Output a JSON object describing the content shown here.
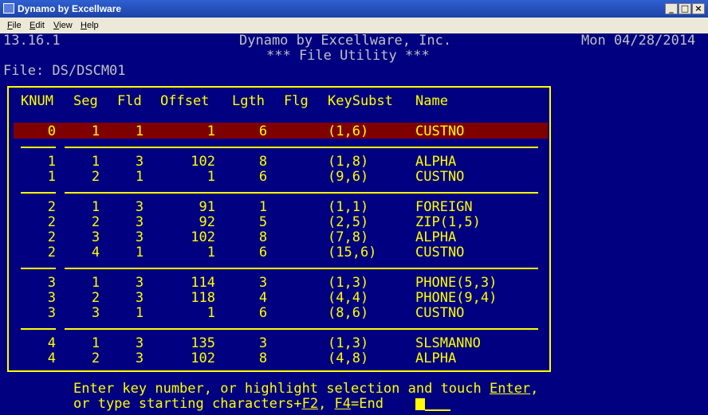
{
  "window": {
    "title": "Dynamo by Excellware",
    "min": "_",
    "max": "□",
    "close": "×"
  },
  "menu": [
    "File",
    "Edit",
    "View",
    "Help"
  ],
  "header": {
    "version": "13.16.1",
    "company": "Dynamo by Excellware, Inc.",
    "date": "Mon 04/28/2014",
    "subtitle": "*** File Utility ***",
    "file_label": "File: DS/DSCM01"
  },
  "columns": [
    "KNUM",
    "Seg",
    "Fld",
    "Offset",
    "Lgth",
    "Flg",
    "KeySubst",
    "Name"
  ],
  "rows": [
    {
      "knum": "0",
      "seg": "1",
      "fld": "1",
      "offset": "1",
      "lgth": "6",
      "flg": "",
      "keysubst": "(1,6)",
      "name": "CUSTNO"
    },
    {
      "knum": "1",
      "seg": "1",
      "fld": "3",
      "offset": "102",
      "lgth": "8",
      "flg": "",
      "keysubst": "(1,8)",
      "name": "ALPHA"
    },
    {
      "knum": "1",
      "seg": "2",
      "fld": "1",
      "offset": "1",
      "lgth": "6",
      "flg": "",
      "keysubst": "(9,6)",
      "name": "CUSTNO"
    },
    {
      "knum": "2",
      "seg": "1",
      "fld": "3",
      "offset": "91",
      "lgth": "1",
      "flg": "",
      "keysubst": "(1,1)",
      "name": "FOREIGN"
    },
    {
      "knum": "2",
      "seg": "2",
      "fld": "3",
      "offset": "92",
      "lgth": "5",
      "flg": "",
      "keysubst": "(2,5)",
      "name": "ZIP(1,5)"
    },
    {
      "knum": "2",
      "seg": "3",
      "fld": "3",
      "offset": "102",
      "lgth": "8",
      "flg": "",
      "keysubst": "(7,8)",
      "name": "ALPHA"
    },
    {
      "knum": "2",
      "seg": "4",
      "fld": "1",
      "offset": "1",
      "lgth": "6",
      "flg": "",
      "keysubst": "(15,6)",
      "name": "CUSTNO"
    },
    {
      "knum": "3",
      "seg": "1",
      "fld": "3",
      "offset": "114",
      "lgth": "3",
      "flg": "",
      "keysubst": "(1,3)",
      "name": "PHONE(5,3)"
    },
    {
      "knum": "3",
      "seg": "2",
      "fld": "3",
      "offset": "118",
      "lgth": "4",
      "flg": "",
      "keysubst": "(4,4)",
      "name": "PHONE(9,4)"
    },
    {
      "knum": "3",
      "seg": "3",
      "fld": "1",
      "offset": "1",
      "lgth": "6",
      "flg": "",
      "keysubst": "(8,6)",
      "name": "CUSTNO"
    },
    {
      "knum": "4",
      "seg": "1",
      "fld": "3",
      "offset": "135",
      "lgth": "3",
      "flg": "",
      "keysubst": "(1,3)",
      "name": "SLSMANNO"
    },
    {
      "knum": "4",
      "seg": "2",
      "fld": "3",
      "offset": "102",
      "lgth": "8",
      "flg": "",
      "keysubst": "(4,8)",
      "name": "ALPHA"
    }
  ],
  "prompt": {
    "line1_prefix": "Enter key number, or highlight selection and touch ",
    "line1_key": "Enter",
    "line1_suffix": ",",
    "line2_prefix": "or type starting characters+",
    "line2_key1": "F2",
    "line2_mid": ", ",
    "line2_key2": "F4",
    "line2_suffix": "=End",
    "input_value": ""
  },
  "colors": {
    "background": "#000080",
    "text": "#ffff00",
    "header_text": "#c0c0c0",
    "highlight": "#800000"
  }
}
